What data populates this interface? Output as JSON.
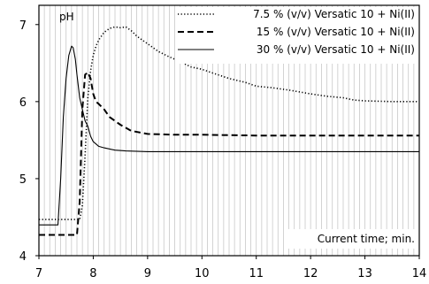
{
  "chart_data": {
    "type": "line",
    "ylabel": "pH",
    "xlabel": "Current time; min.",
    "xlim": [
      7,
      14
    ],
    "ylim": [
      4,
      7.25
    ],
    "xticks": [
      "7",
      "8",
      "9",
      "10",
      "11",
      "12",
      "13",
      "14"
    ],
    "yticks": [
      "4",
      "5",
      "6",
      "7"
    ],
    "xtick_values": [
      7,
      8,
      9,
      10,
      11,
      12,
      13,
      14
    ],
    "ytick_values": [
      4,
      5,
      6,
      7
    ],
    "grid": {
      "vertical": true,
      "vertical_step": 0.1,
      "horizontal": false
    },
    "legend_position": "top-right",
    "series": [
      {
        "name": "7.5 % (v/v) Versatic 10 + Ni(II)",
        "style": "dotted",
        "color": "#000000",
        "x": [
          7.0,
          7.2,
          7.4,
          7.6,
          7.75,
          7.8,
          7.85,
          7.9,
          7.95,
          8.0,
          8.05,
          8.1,
          8.2,
          8.3,
          8.4,
          8.5,
          8.6,
          8.7,
          8.8,
          8.9,
          9.0,
          9.2,
          9.4,
          9.6,
          9.8,
          10.0,
          10.2,
          10.5,
          10.8,
          11.0,
          11.3,
          11.6,
          12.0,
          12.3,
          12.6,
          12.8,
          13.0,
          13.5,
          14.0
        ],
        "y": [
          4.47,
          4.47,
          4.47,
          4.47,
          4.47,
          4.65,
          5.3,
          6.05,
          6.4,
          6.6,
          6.72,
          6.8,
          6.9,
          6.95,
          6.97,
          6.96,
          6.97,
          6.92,
          6.85,
          6.8,
          6.75,
          6.65,
          6.58,
          6.52,
          6.45,
          6.42,
          6.37,
          6.3,
          6.25,
          6.2,
          6.18,
          6.15,
          6.1,
          6.07,
          6.05,
          6.02,
          6.01,
          6.0,
          6.0
        ]
      },
      {
        "name": "15 % (v/v) Versatic 10 + Ni(II)",
        "style": "dashed",
        "color": "#000000",
        "x": [
          7.0,
          7.3,
          7.5,
          7.65,
          7.7,
          7.75,
          7.8,
          7.85,
          7.9,
          7.95,
          8.0,
          8.05,
          8.1,
          8.2,
          8.3,
          8.5,
          8.7,
          9.0,
          9.5,
          10.0,
          11.0,
          12.0,
          13.0,
          14.0
        ],
        "y": [
          4.27,
          4.27,
          4.27,
          4.27,
          4.27,
          4.7,
          5.9,
          6.35,
          6.38,
          6.3,
          6.1,
          6.0,
          5.97,
          5.9,
          5.8,
          5.7,
          5.62,
          5.58,
          5.57,
          5.57,
          5.56,
          5.56,
          5.56,
          5.56
        ]
      },
      {
        "name": "30 % (v/v) Versatic 10 + Ni(II)",
        "style": "solid",
        "color": "#000000",
        "x": [
          7.0,
          7.2,
          7.35,
          7.4,
          7.45,
          7.5,
          7.55,
          7.6,
          7.63,
          7.67,
          7.7,
          7.75,
          7.8,
          7.85,
          7.9,
          7.95,
          8.0,
          8.05,
          8.1,
          8.2,
          8.4,
          8.6,
          9.0,
          9.5,
          10.0,
          11.0,
          12.0,
          13.0,
          14.0
        ],
        "y": [
          4.4,
          4.4,
          4.4,
          5.0,
          5.8,
          6.3,
          6.6,
          6.72,
          6.7,
          6.55,
          6.35,
          6.05,
          5.9,
          5.75,
          5.68,
          5.55,
          5.48,
          5.45,
          5.42,
          5.4,
          5.37,
          5.36,
          5.35,
          5.35,
          5.35,
          5.35,
          5.35,
          5.35,
          5.35
        ]
      }
    ]
  }
}
